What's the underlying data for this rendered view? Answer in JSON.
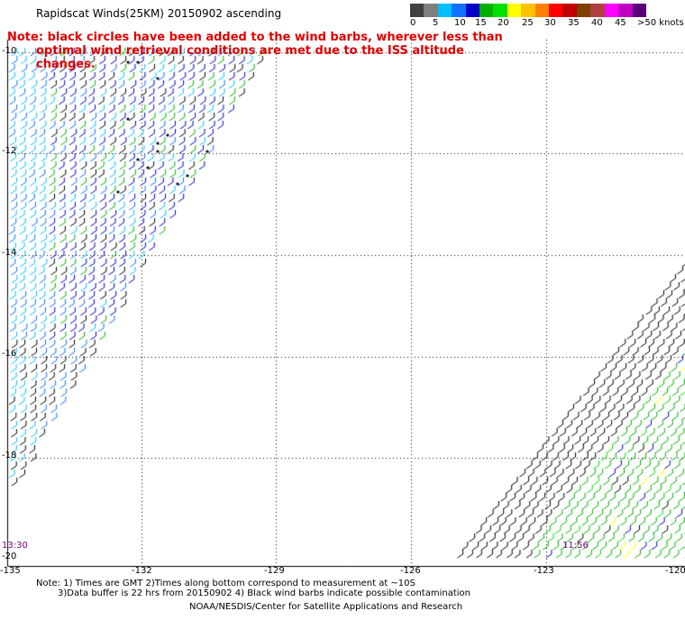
{
  "title": "Rapidscat Winds(25KM) 20150902 ascending",
  "note": {
    "line1": "Note: black circles have been added to the wind barbs, wherever less than",
    "line2": "optimal wind retrieval conditions are met due to the ISS altitude changes."
  },
  "colorbar": {
    "colors": [
      "#404040",
      "#7f7f7f",
      "#00c0ff",
      "#1070ff",
      "#0000c8",
      "#00b000",
      "#00e000",
      "#ffff00",
      "#ffc000",
      "#ff8000",
      "#ff0000",
      "#c00000",
      "#7f3f00",
      "#b04040",
      "#ff00ff",
      "#c000c0",
      "#5a007a"
    ],
    "labels": [
      "0",
      "5",
      "10",
      "15",
      "20",
      "25",
      "30",
      "35",
      "40",
      "45",
      ">50 knots"
    ]
  },
  "lat_labels": [
    "-10",
    "-12",
    "-14",
    "-16",
    "-18",
    "-20"
  ],
  "lon_labels": [
    "-135",
    "-132",
    "-129",
    "-126",
    "-123",
    "-120"
  ],
  "times": [
    "13:30",
    "11:56"
  ],
  "footer": {
    "line1": "Note: 1) Times are GMT 2)Times along bottom correspond to measurement at ~10S",
    "line2": "3)Data buffer is 22 hrs from 20150902 4) Black wind barbs indicate possible contamination",
    "line3": "NOAA/NESDIS/Center for Satellite Applications and Research"
  }
}
